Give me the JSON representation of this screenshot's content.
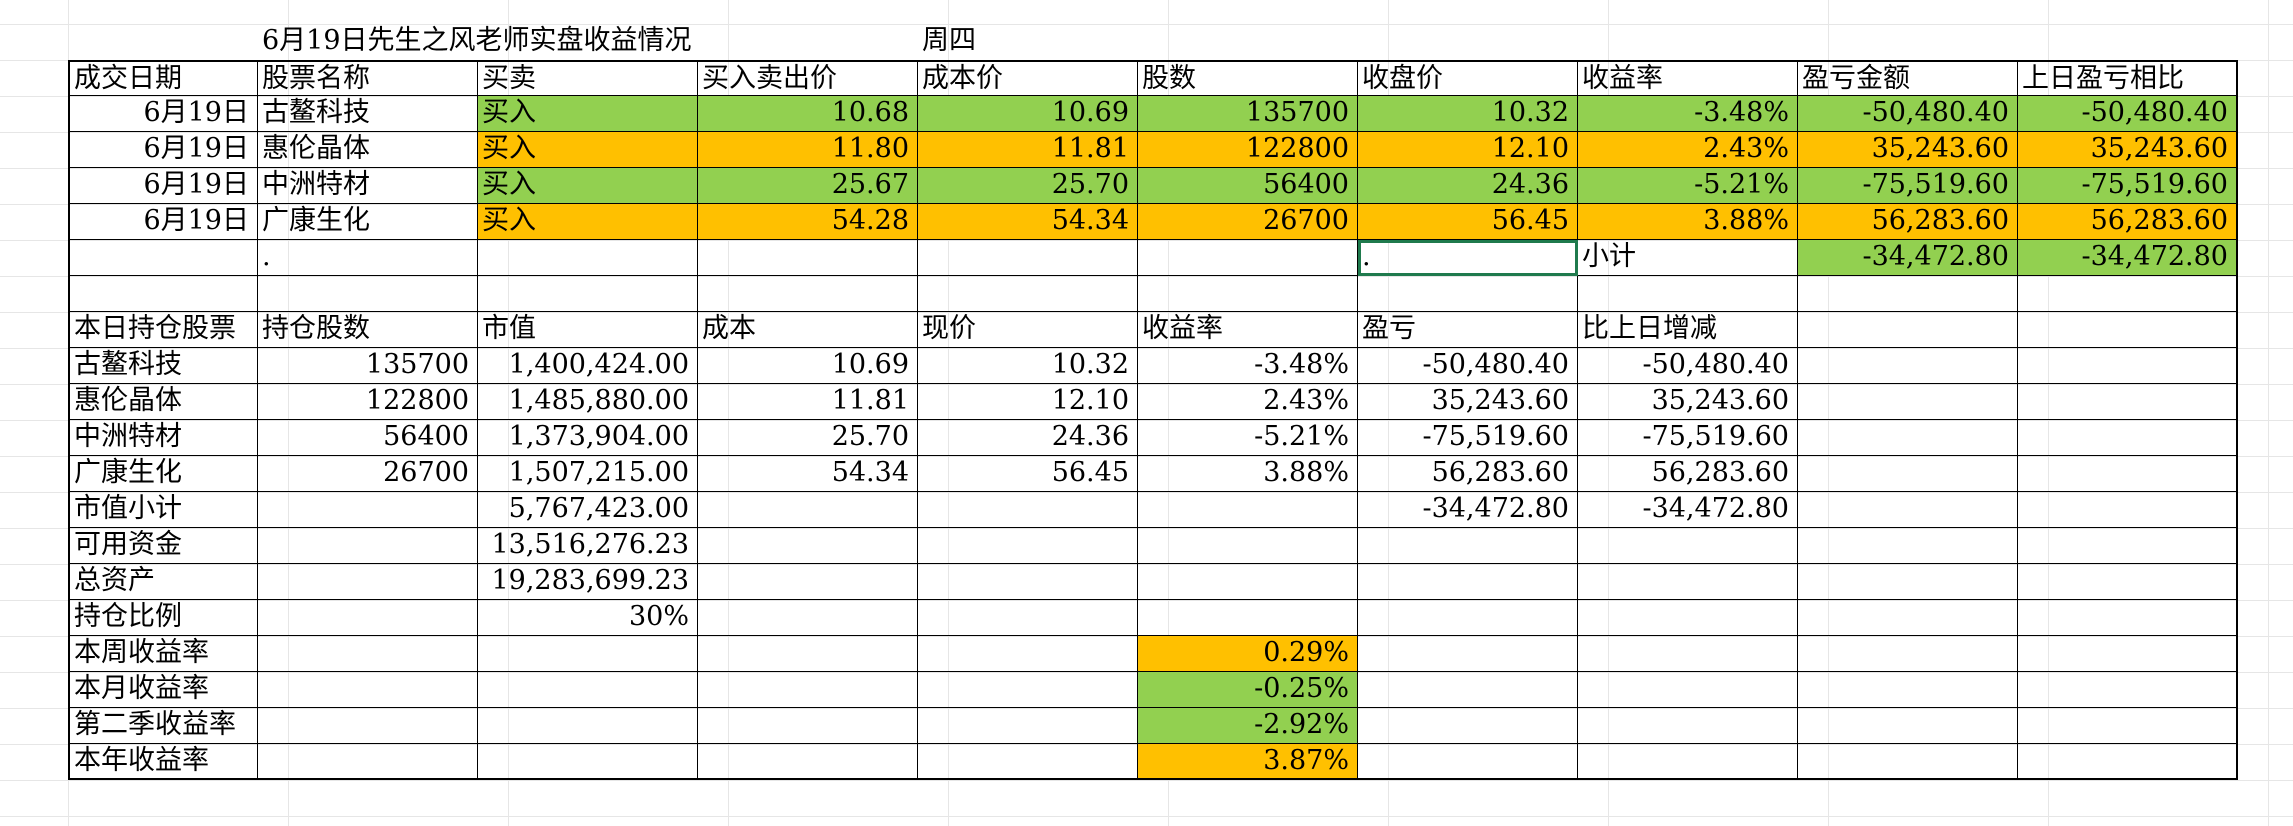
{
  "title": "6月19日先生之风老师实盘收益情况",
  "weekday": "周四",
  "trade_headers": [
    "成交日期",
    "股票名称",
    "买卖",
    "买入卖出价",
    "成本价",
    "股数",
    "收盘价",
    "收益率",
    "盈亏金额",
    "上日盈亏相比"
  ],
  "trades": [
    {
      "date": "6月19日",
      "name": "古鳌科技",
      "action": "买入",
      "price": "10.68",
      "cost": "10.69",
      "shares": "135700",
      "close": "10.32",
      "ret": "-3.48%",
      "pnl": "-50,480.40",
      "prev_cmp": "-50,480.40",
      "color": "green"
    },
    {
      "date": "6月19日",
      "name": "惠伦晶体",
      "action": "买入",
      "price": "11.80",
      "cost": "11.81",
      "shares": "122800",
      "close": "12.10",
      "ret": "2.43%",
      "pnl": "35,243.60",
      "prev_cmp": "35,243.60",
      "color": "orange"
    },
    {
      "date": "6月19日",
      "name": "中洲特材",
      "action": "买入",
      "price": "25.67",
      "cost": "25.70",
      "shares": "56400",
      "close": "24.36",
      "ret": "-5.21%",
      "pnl": "-75,519.60",
      "prev_cmp": "-75,519.60",
      "color": "green"
    },
    {
      "date": "6月19日",
      "name": "广康生化",
      "action": "买入",
      "price": "54.28",
      "cost": "54.34",
      "shares": "26700",
      "close": "56.45",
      "ret": "3.88%",
      "pnl": "56,283.60",
      "prev_cmp": "56,283.60",
      "color": "orange"
    }
  ],
  "subtotal": {
    "dot_b": ".",
    "dot_g": ".",
    "label": "小计",
    "pnl": "-34,472.80",
    "prev_cmp": "-34,472.80"
  },
  "hold_headers": [
    "本日持仓股票",
    "持仓股数",
    "市值",
    "成本",
    "现价",
    "收益率",
    "盈亏",
    "比上日增减"
  ],
  "holdings": [
    {
      "name": "古鳌科技",
      "shares": "135700",
      "mv": "1,400,424.00",
      "cost": "10.69",
      "price": "10.32",
      "ret": "-3.48%",
      "pnl": "-50,480.40",
      "chg": "-50,480.40"
    },
    {
      "name": "惠伦晶体",
      "shares": "122800",
      "mv": "1,485,880.00",
      "cost": "11.81",
      "price": "12.10",
      "ret": "2.43%",
      "pnl": "35,243.60",
      "chg": "35,243.60"
    },
    {
      "name": "中洲特材",
      "shares": "56400",
      "mv": "1,373,904.00",
      "cost": "25.70",
      "price": "24.36",
      "ret": "-5.21%",
      "pnl": "-75,519.60",
      "chg": "-75,519.60"
    },
    {
      "name": "广康生化",
      "shares": "26700",
      "mv": "1,507,215.00",
      "cost": "54.34",
      "price": "56.45",
      "ret": "3.88%",
      "pnl": "56,283.60",
      "chg": "56,283.60"
    }
  ],
  "mv_subtotal": {
    "label": "市值小计",
    "value": "5,767,423.00",
    "pnl": "-34,472.80",
    "chg": "-34,472.80"
  },
  "summary": [
    {
      "label": "可用资金",
      "value": "13,516,276.23"
    },
    {
      "label": "总资产",
      "value": "19,283,699.23"
    },
    {
      "label": "持仓比例",
      "value": "30%"
    }
  ],
  "returns": [
    {
      "label": "本周收益率",
      "value": "0.29%",
      "color": "orange"
    },
    {
      "label": "本月收益率",
      "value": "-0.25%",
      "color": "green"
    },
    {
      "label": "第二季收益率",
      "value": "-2.92%",
      "color": "green"
    },
    {
      "label": "本年收益率",
      "value": "3.87%",
      "color": "orange"
    }
  ],
  "colors": {
    "green": "#92d050",
    "orange": "#ffc000",
    "selection": "#1f7a4d"
  }
}
